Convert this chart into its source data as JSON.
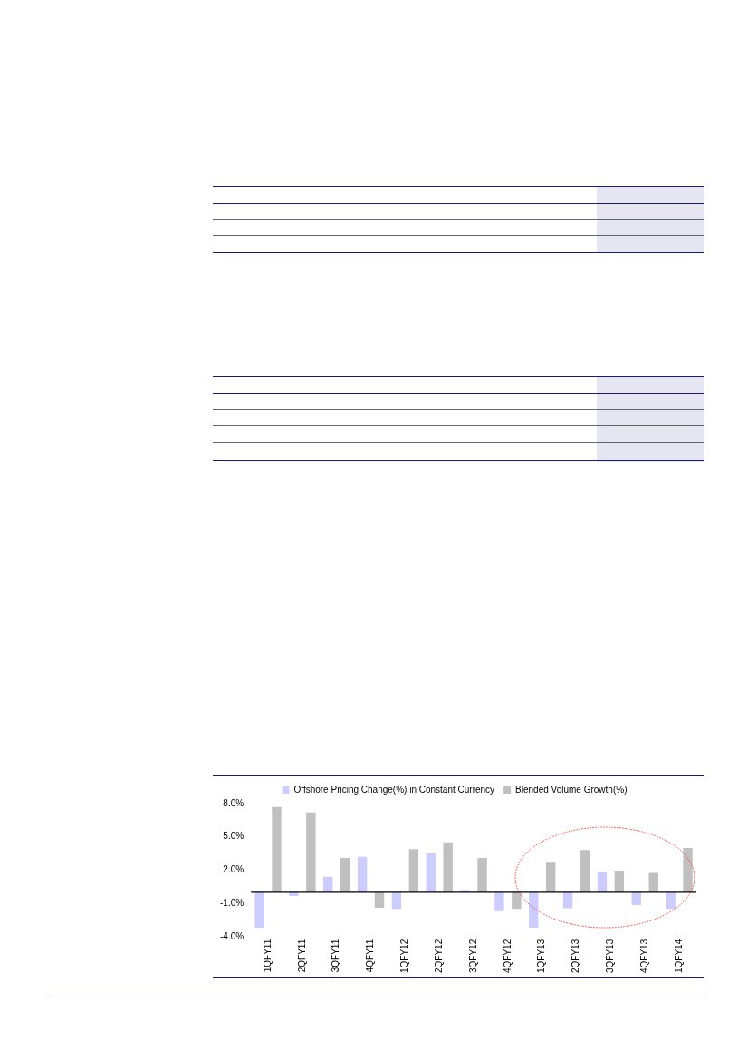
{
  "chart_data": {
    "type": "bar",
    "categories": [
      "1QFY11",
      "2QFY11",
      "3QFY11",
      "4QFY11",
      "1QFY12",
      "2QFY12",
      "3QFY12",
      "4QFY12",
      "1QFY13",
      "2QFY13",
      "3QFY13",
      "4QFY13",
      "1QFY14"
    ],
    "series": [
      {
        "name": "Offshore Pricing Change(%) in Constant Currency",
        "color": "#ccccff",
        "values": [
          -3.2,
          -0.35,
          1.4,
          3.2,
          -1.5,
          3.5,
          0.2,
          -1.7,
          -3.2,
          -1.45,
          1.85,
          -1.15,
          -1.5
        ]
      },
      {
        "name": "Blended Volume Growth(%)",
        "color": "#c0c0c0",
        "values": [
          7.7,
          7.2,
          3.1,
          -1.4,
          3.9,
          4.5,
          3.1,
          -1.5,
          2.75,
          3.8,
          1.95,
          1.75,
          4.0
        ]
      }
    ],
    "ylim": [
      -4,
      8
    ],
    "yticks": [
      {
        "value": -4,
        "label": "-4.0%"
      },
      {
        "value": -1,
        "label": "-1.0%"
      },
      {
        "value": 2,
        "label": "2.0%"
      },
      {
        "value": 5,
        "label": "5.0%"
      },
      {
        "value": 8,
        "label": "8.0%"
      }
    ],
    "grid": false,
    "legend": "top"
  }
}
